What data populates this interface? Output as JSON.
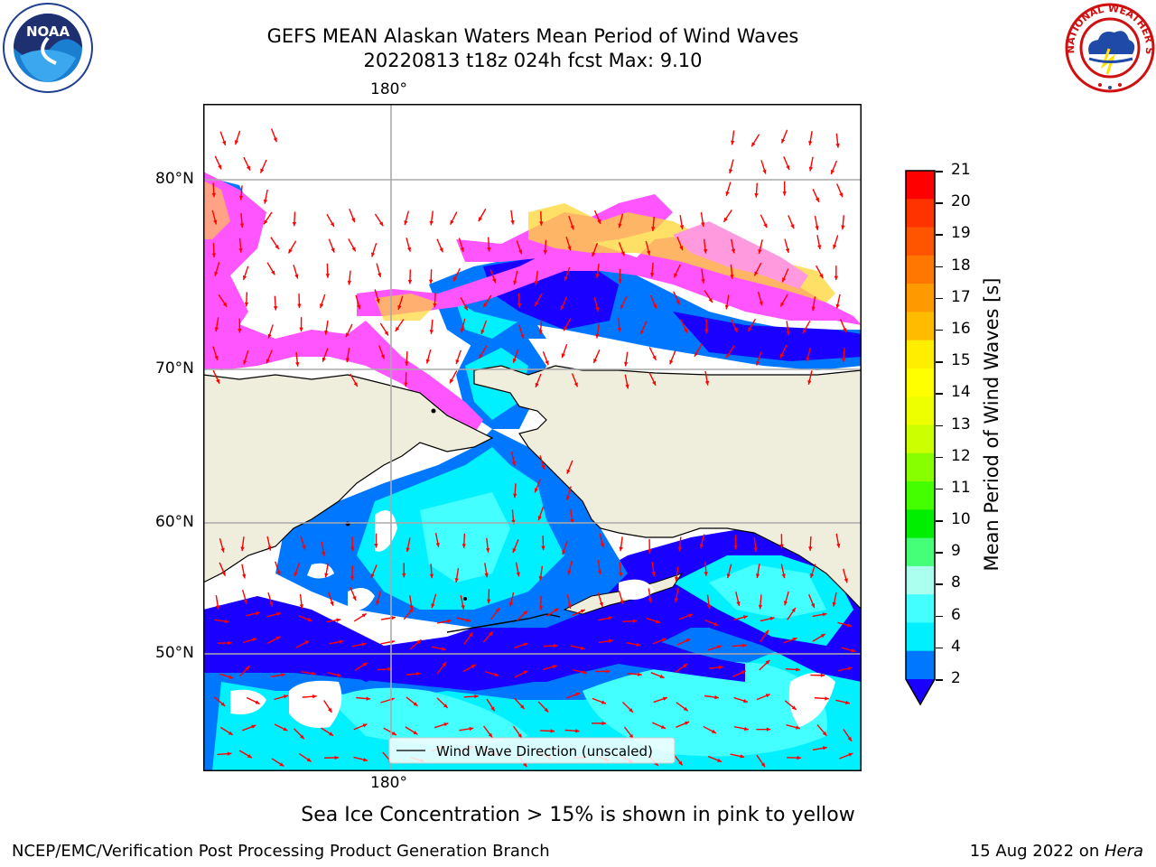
{
  "title": {
    "line1": "GEFS MEAN Alaskan Waters Mean Period of Wind Waves",
    "line2": "20220813 t18z 024h fcst   Max: 9.10"
  },
  "axes": {
    "lon_top": "180°",
    "lon_bottom": "180°",
    "lat_labels": [
      "80°N",
      "70°N",
      "60°N",
      "50°N"
    ]
  },
  "legend": {
    "label": "Wind Wave Direction (unscaled)"
  },
  "colorbar": {
    "title": "Mean Period of Wind Waves [s]",
    "ticks": [
      "21",
      "20",
      "19",
      "18",
      "17",
      "16",
      "15",
      "14",
      "13",
      "12",
      "11",
      "10",
      "9",
      "8",
      "6",
      "4",
      "2"
    ],
    "colors": [
      "#ff0000",
      "#ff3300",
      "#ff5500",
      "#ff7700",
      "#ff9900",
      "#ffbb00",
      "#ffee00",
      "#ffff00",
      "#eeff00",
      "#ccff00",
      "#88ff00",
      "#44ff00",
      "#00ee00",
      "#44ff77",
      "#aaffee",
      "#44ffff",
      "#00f0ff",
      "#0077ff"
    ],
    "extend_color": "#1a00ff"
  },
  "caption": "Sea Ice Concentration > 15% is shown in pink to yellow",
  "footer": {
    "left": "NCEP/EMC/Verification Post Processing Product Generation Branch",
    "right_date": "15 Aug 2022 on ",
    "right_host": "Hera"
  },
  "logos": {
    "noaa_text": "NOAA",
    "nws_text": "NATIONAL WEATHER SERVICE"
  },
  "colors": {
    "land": "#efeddb",
    "deep_blue": "#1a00ff",
    "mid_blue": "#0077ff",
    "cyan": "#00f0ff",
    "light_cyan": "#44ffff",
    "arrow": "#ff0000",
    "ice_pink": "#ff55ff",
    "ice_yellow": "#ffd633"
  }
}
